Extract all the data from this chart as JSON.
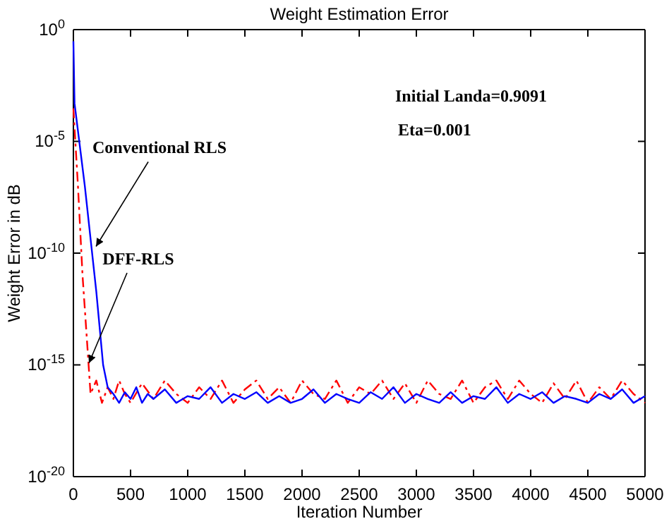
{
  "chart_data": {
    "type": "line",
    "title": "Weight Estimation Error",
    "xlabel": "Iteration Number",
    "ylabel": "Weight Error in dB",
    "log": "y",
    "grid": false,
    "marker": "none",
    "xlim": [
      0,
      5000
    ],
    "xticks": [
      0,
      500,
      1000,
      1500,
      2000,
      2500,
      3000,
      3500,
      4000,
      4500,
      5000
    ],
    "ylim": [
      1e-20,
      1
    ],
    "yticks": [
      {
        "value": 1,
        "label": "10$^{0}$"
      },
      {
        "value": 1e-05,
        "label": "10$^{-5}$"
      },
      {
        "value": 1e-10,
        "label": "10$^{-10}$"
      },
      {
        "value": 1e-15,
        "label": "10$^{-15}$"
      },
      {
        "value": 1e-20,
        "label": "10$^{-20}$"
      }
    ],
    "series": [
      {
        "color": "#0000ff",
        "line_style": "solid",
        "x": [
          0,
          10,
          100,
          200,
          260,
          300,
          350,
          400,
          450,
          500,
          550,
          600,
          650,
          700,
          800,
          900,
          1000,
          1100,
          1200,
          1300,
          1400,
          1500,
          1600,
          1700,
          1800,
          1900,
          2000,
          2100,
          2200,
          2300,
          2400,
          2500,
          2600,
          2700,
          2800,
          2900,
          3000,
          3100,
          3200,
          3300,
          3400,
          3500,
          3600,
          3700,
          3800,
          3900,
          4000,
          4100,
          4200,
          4300,
          4400,
          4500,
          4600,
          4700,
          4800,
          4900,
          5000
        ],
        "values": [
          0.3,
          0.0005,
          1e-07,
          2e-12,
          1e-15,
          1e-16,
          5e-17,
          2e-17,
          6e-17,
          3e-17,
          1e-16,
          2e-17,
          5e-17,
          3e-17,
          8e-17,
          2e-17,
          4e-17,
          3e-17,
          1e-16,
          2e-17,
          5e-17,
          3e-17,
          6e-17,
          2e-17,
          4e-17,
          2e-17,
          3e-17,
          8e-17,
          2e-17,
          5e-17,
          3e-17,
          2e-17,
          6e-17,
          3e-17,
          1e-16,
          2e-17,
          5e-17,
          3e-17,
          2e-17,
          6e-17,
          2e-17,
          4e-17,
          3e-17,
          1e-16,
          2e-17,
          5e-17,
          3e-17,
          6e-17,
          2e-17,
          4e-17,
          3e-17,
          2e-17,
          5e-17,
          3e-17,
          8e-17,
          2e-17,
          4e-17
        ]
      },
      {
        "color": "#ff0000",
        "line_style": "dashed",
        "x": [
          0,
          40,
          80,
          120,
          150,
          200,
          250,
          300,
          350,
          400,
          450,
          500,
          600,
          700,
          800,
          900,
          1000,
          1100,
          1200,
          1300,
          1400,
          1500,
          1600,
          1700,
          1800,
          1900,
          2000,
          2100,
          2200,
          2300,
          2400,
          2500,
          2600,
          2700,
          2800,
          2900,
          3000,
          3100,
          3200,
          3300,
          3400,
          3500,
          3600,
          3700,
          3800,
          3900,
          4000,
          4100,
          4200,
          4300,
          4400,
          4500,
          4600,
          4700,
          4800,
          4900,
          5000
        ],
        "values": [
          0.0003,
          1e-07,
          1e-11,
          1e-14,
          5e-17,
          2e-16,
          2e-17,
          1e-16,
          3e-17,
          2e-16,
          5e-17,
          2e-17,
          1.5e-16,
          3e-17,
          2e-16,
          5e-17,
          2e-17,
          1e-16,
          3e-17,
          2e-16,
          2e-17,
          8e-17,
          2e-16,
          3e-17,
          1e-16,
          2e-17,
          2e-16,
          5e-17,
          3e-17,
          2e-16,
          2e-17,
          1e-16,
          5e-17,
          2e-16,
          3e-17,
          1.5e-16,
          2e-17,
          2e-16,
          5e-17,
          3e-17,
          2e-16,
          2e-17,
          1e-16,
          2e-16,
          3e-17,
          2e-16,
          5e-17,
          2e-17,
          1.5e-16,
          3e-17,
          2e-16,
          2e-17,
          1e-16,
          3e-17,
          2e-16,
          5e-17,
          2e-17
        ]
      }
    ],
    "annotations": [
      {
        "text": "Conventional RLS",
        "x": 198,
        "y": 2e-10
      },
      {
        "text": "DFF-RLS",
        "x": 136,
        "y": 1.2e-15
      },
      "Initial Landa=0.9091",
      "Eta=0.001"
    ]
  }
}
